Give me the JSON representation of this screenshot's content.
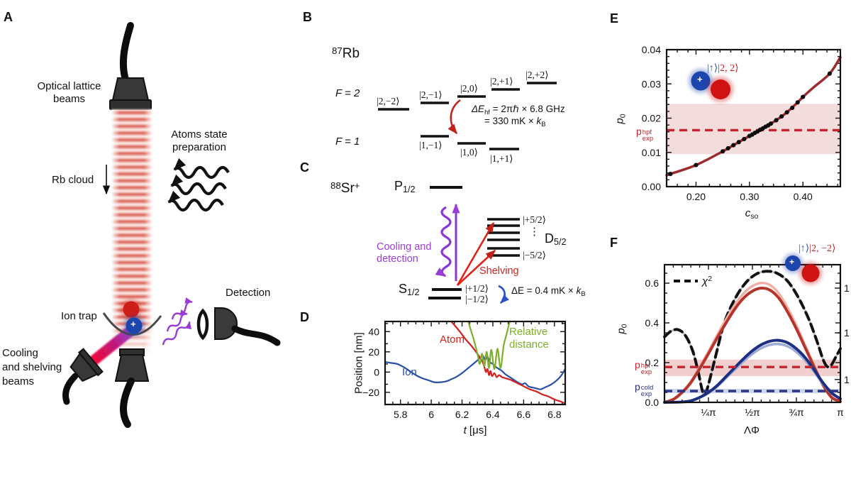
{
  "panels": {
    "A": {
      "label": "A",
      "optical_lattice": [
        "Optical lattice",
        "beams"
      ],
      "atoms_state": [
        "Atoms state",
        "preparation"
      ],
      "rb_cloud": "Rb cloud",
      "ion_trap": "Ion trap",
      "detection": "Detection",
      "cooling": [
        "Cooling",
        "and shelving",
        "beams"
      ],
      "ion_plus": "+"
    },
    "B": {
      "label": "B",
      "isotope_mass": "87",
      "isotope_symbol": "Rb",
      "f2": "F = 2",
      "f1": "F = 1",
      "f2_states": [
        "|2,−2⟩",
        "|2,−1⟩",
        "|2,0⟩",
        "|2,+1⟩",
        "|2,+2⟩"
      ],
      "f1_states": [
        "|1,−1⟩",
        "|1,0⟩",
        "|1,+1⟩"
      ],
      "hf_line1_main": "ΔE",
      "hf_line1_sub": "hf",
      "hf_line1_rest": " = 2πℏ × 6.8 GHz",
      "hf_line2_main": "= 330 mK × ",
      "hf_line2_k": "k",
      "hf_line2_sub": "B"
    },
    "C": {
      "label": "C",
      "ion_mass": "88",
      "ion_symbol": "Sr",
      "ion_charge": "+",
      "P": "P",
      "P_sub": "1/2",
      "S": "S",
      "S_sub": "1/2",
      "D": "D",
      "D_sub": "5/2",
      "d_top": "|+5/2⟩",
      "d_bottom": "|−5/2⟩",
      "dots": "⋮",
      "s_up": "|+1/2⟩",
      "s_down": "|−1/2⟩",
      "cooling": [
        "Cooling and",
        "detection"
      ],
      "shelving": "Shelving",
      "dE_main": "ΔE = 0.4 mK × ",
      "dE_k": "k",
      "dE_sub": "B"
    }
  },
  "chart_data": [
    {
      "panel": "D",
      "type": "line",
      "ylabel": "Position [nm]",
      "xlabel_it": "t",
      "xlabel_rest": " [μs]",
      "xlim": [
        5.7,
        6.87
      ],
      "ylim": [
        -32,
        50
      ],
      "xticks": [
        5.8,
        6.0,
        6.2,
        6.4,
        6.6,
        6.8
      ],
      "xtick_labels": [
        "5.8",
        "6",
        "6.2",
        "6.4",
        "6.6",
        "6.8"
      ],
      "yticks": [
        -20,
        0,
        20,
        40
      ],
      "ytick_labels": [
        "−20",
        "0",
        "20",
        "40"
      ],
      "xminor": 0.05,
      "yminor": 10,
      "series": [
        {
          "name": "Ion",
          "color": "#2a4fa8",
          "width": 2.2,
          "points": [
            [
              5.7,
              10
            ],
            [
              5.74,
              9
            ],
            [
              5.78,
              8
            ],
            [
              5.82,
              5
            ],
            [
              5.86,
              1
            ],
            [
              5.9,
              -3
            ],
            [
              5.94,
              -6
            ],
            [
              5.98,
              -8
            ],
            [
              6.02,
              -10
            ],
            [
              6.06,
              -10
            ],
            [
              6.1,
              -9
            ],
            [
              6.13,
              -7
            ],
            [
              6.16,
              -5
            ],
            [
              6.2,
              -1
            ],
            [
              6.24,
              4
            ],
            [
              6.28,
              9
            ],
            [
              6.31,
              13
            ],
            [
              6.335,
              16
            ],
            [
              6.35,
              12
            ],
            [
              6.365,
              15
            ],
            [
              6.38,
              10
            ],
            [
              6.4,
              8
            ],
            [
              6.42,
              5
            ],
            [
              6.44,
              3
            ],
            [
              6.46,
              1
            ],
            [
              6.48,
              -2
            ],
            [
              6.5,
              -4
            ],
            [
              6.53,
              -7
            ],
            [
              6.56,
              -10
            ],
            [
              6.59,
              -12
            ],
            [
              6.61,
              -11
            ],
            [
              6.63,
              -14
            ],
            [
              6.65,
              -15
            ],
            [
              6.68,
              -16
            ],
            [
              6.71,
              -17
            ],
            [
              6.74,
              -15
            ],
            [
              6.77,
              -13
            ],
            [
              6.8,
              -10
            ],
            [
              6.83,
              -6
            ],
            [
              6.85,
              -2
            ],
            [
              6.87,
              3
            ]
          ]
        },
        {
          "name": "Atom",
          "color": "#d42020",
          "width": 2.2,
          "points": [
            [
              6.13,
              50
            ],
            [
              6.18,
              41
            ],
            [
              6.22,
              33
            ],
            [
              6.26,
              26
            ],
            [
              6.3,
              18
            ],
            [
              6.33,
              11
            ],
            [
              6.345,
              5
            ],
            [
              6.355,
              0
            ],
            [
              6.365,
              3
            ],
            [
              6.375,
              -3
            ],
            [
              6.385,
              1
            ],
            [
              6.395,
              -4
            ],
            [
              6.41,
              -1
            ],
            [
              6.425,
              -5
            ],
            [
              6.44,
              -3
            ],
            [
              6.46,
              -5
            ],
            [
              6.48,
              -6
            ],
            [
              6.52,
              -8
            ],
            [
              6.56,
              -11
            ],
            [
              6.6,
              -14
            ],
            [
              6.64,
              -17
            ],
            [
              6.68,
              -19
            ],
            [
              6.72,
              -22
            ],
            [
              6.76,
              -24
            ],
            [
              6.8,
              -27
            ],
            [
              6.84,
              -29
            ],
            [
              6.87,
              -31
            ]
          ]
        },
        {
          "name": "Relative distance",
          "name_lines": [
            "Relative",
            "distance"
          ],
          "color": "#7fae2a",
          "width": 2.2,
          "points": [
            [
              6.24,
              50
            ],
            [
              6.26,
              40
            ],
            [
              6.28,
              30
            ],
            [
              6.3,
              18
            ],
            [
              6.315,
              8
            ],
            [
              6.33,
              18
            ],
            [
              6.345,
              6
            ],
            [
              6.36,
              20
            ],
            [
              6.375,
              4
            ],
            [
              6.39,
              22
            ],
            [
              6.41,
              3
            ],
            [
              6.43,
              23
            ],
            [
              6.45,
              4
            ],
            [
              6.47,
              26
            ],
            [
              6.49,
              38
            ],
            [
              6.51,
              50
            ]
          ]
        }
      ]
    },
    {
      "panel": "E",
      "type": "line+scatter",
      "ylabel_it": "p",
      "ylabel_sub": "0",
      "xlabel_it": "c",
      "xlabel_sub": "so",
      "xlim": [
        0.145,
        0.47
      ],
      "ylim": [
        0,
        0.04
      ],
      "xticks": [
        0.2,
        0.3,
        0.4
      ],
      "xtick_labels": [
        "0.20",
        "0.30",
        "0.40"
      ],
      "yticks": [
        0.0,
        0.01,
        0.02,
        0.03,
        0.04
      ],
      "ytick_labels": [
        "0.00",
        "0.01",
        "0.02",
        "0.03",
        "0.04"
      ],
      "xminor": 0.02,
      "yminor": 0.002,
      "bands": [
        {
          "y0": 0.0095,
          "y1": 0.0242,
          "color": "#f3dcdc"
        }
      ],
      "series": [
        {
          "name": "model",
          "color": "#9e2a2e",
          "width": 3.5,
          "points": [
            [
              0.145,
              0.0033
            ],
            [
              0.152,
              0.0037
            ],
            [
              0.2,
              0.0063
            ],
            [
              0.25,
              0.0103
            ],
            [
              0.27,
              0.0121
            ],
            [
              0.29,
              0.0139
            ],
            [
              0.31,
              0.0157
            ],
            [
              0.33,
              0.0175
            ],
            [
              0.35,
              0.0194
            ],
            [
              0.37,
              0.0217
            ],
            [
              0.39,
              0.0246
            ],
            [
              0.4,
              0.0262
            ],
            [
              0.42,
              0.029
            ],
            [
              0.45,
              0.033
            ],
            [
              0.47,
              0.0378
            ]
          ]
        }
      ],
      "points": [
        [
          0.152,
          0.0037
        ],
        [
          0.2,
          0.0063
        ],
        [
          0.25,
          0.0103
        ],
        [
          0.26,
          0.0112
        ],
        [
          0.27,
          0.0121
        ],
        [
          0.28,
          0.013
        ],
        [
          0.29,
          0.0139
        ],
        [
          0.3,
          0.0148
        ],
        [
          0.305,
          0.0152
        ],
        [
          0.31,
          0.0157
        ],
        [
          0.315,
          0.0161
        ],
        [
          0.32,
          0.0166
        ],
        [
          0.325,
          0.017
        ],
        [
          0.33,
          0.0175
        ],
        [
          0.335,
          0.0179
        ],
        [
          0.34,
          0.0184
        ],
        [
          0.35,
          0.0194
        ],
        [
          0.36,
          0.0205
        ],
        [
          0.37,
          0.0217
        ],
        [
          0.38,
          0.023
        ],
        [
          0.39,
          0.0246
        ],
        [
          0.4,
          0.0262
        ],
        [
          0.45,
          0.033
        ]
      ],
      "hlines": [
        {
          "y": 0.0165,
          "color": "#c3242e",
          "label_main": "p",
          "label_sup": "hpf",
          "label_sub": "exp"
        }
      ],
      "inset": {
        "up": "|↑⟩",
        "state": "|2, 2⟩",
        "plus": "+"
      }
    },
    {
      "panel": "F",
      "type": "line",
      "ylabel_it": "p",
      "ylabel_sub": "0",
      "xlabel": "ΛΦ",
      "xlim": [
        0,
        1
      ],
      "ylim": [
        0,
        0.693
      ],
      "xticks": [
        0.25,
        0.5,
        0.75,
        1
      ],
      "xtick_labels": [
        "¼π",
        "½π",
        "¾π",
        "π"
      ],
      "yticks": [
        0.0,
        0.2,
        0.4,
        0.6
      ],
      "ytick_labels": [
        "0.0",
        "0.2",
        "0.4",
        "0.6"
      ],
      "xminor": 0.05,
      "yminor": 0.05,
      "right_ticks": {
        "pos": [
          0.575,
          0.35,
          0.115
        ],
        "labels": [
          "1",
          "1",
          "1"
        ]
      },
      "legend": {
        "chi": "χ",
        "sup": "2"
      },
      "bands": [
        {
          "y0": 0.132,
          "y1": 0.215,
          "color": "#f2cfcf"
        },
        {
          "y0": 0.046,
          "y1": 0.068,
          "color": "#cdd4ec"
        }
      ],
      "series": [
        {
          "name": "chi-squared",
          "color": "#111111",
          "width": 4,
          "dash": "11 7",
          "shadow": "#c0c0c0",
          "points": [
            [
              0,
              0.33
            ],
            [
              0.04,
              0.36
            ],
            [
              0.08,
              0.365
            ],
            [
              0.12,
              0.335
            ],
            [
              0.16,
              0.26
            ],
            [
              0.19,
              0.16
            ],
            [
              0.215,
              0.06
            ],
            [
              0.23,
              0.04
            ],
            [
              0.25,
              0.09
            ],
            [
              0.29,
              0.23
            ],
            [
              0.34,
              0.4
            ],
            [
              0.4,
              0.52
            ],
            [
              0.46,
              0.6
            ],
            [
              0.52,
              0.645
            ],
            [
              0.58,
              0.66
            ],
            [
              0.64,
              0.65
            ],
            [
              0.7,
              0.61
            ],
            [
              0.76,
              0.53
            ],
            [
              0.82,
              0.42
            ],
            [
              0.87,
              0.3
            ],
            [
              0.9,
              0.22
            ],
            [
              0.925,
              0.18
            ],
            [
              0.95,
              0.19
            ],
            [
              0.975,
              0.23
            ],
            [
              1,
              0.27
            ]
          ]
        },
        {
          "name": "hot model",
          "color": "#b5352c",
          "width": 4,
          "light": "#f0b0a6",
          "lightScale": 1.045,
          "points": [
            [
              0,
              0
            ],
            [
              0.05,
              0.015
            ],
            [
              0.1,
              0.05
            ],
            [
              0.15,
              0.1
            ],
            [
              0.2,
              0.17
            ],
            [
              0.25,
              0.245
            ],
            [
              0.3,
              0.325
            ],
            [
              0.35,
              0.4
            ],
            [
              0.4,
              0.47
            ],
            [
              0.45,
              0.525
            ],
            [
              0.5,
              0.56
            ],
            [
              0.55,
              0.575
            ],
            [
              0.6,
              0.565
            ],
            [
              0.65,
              0.525
            ],
            [
              0.7,
              0.455
            ],
            [
              0.75,
              0.37
            ],
            [
              0.8,
              0.275
            ],
            [
              0.85,
              0.18
            ],
            [
              0.9,
              0.09
            ],
            [
              0.95,
              0.025
            ],
            [
              1,
              0.005
            ]
          ]
        },
        {
          "name": "cold model",
          "color": "#1d2f80",
          "width": 4,
          "light": "#9fabd6",
          "lightScale": 0.94,
          "points": [
            [
              0,
              0
            ],
            [
              0.1,
              0.002
            ],
            [
              0.15,
              0.008
            ],
            [
              0.2,
              0.025
            ],
            [
              0.25,
              0.05
            ],
            [
              0.3,
              0.085
            ],
            [
              0.35,
              0.13
            ],
            [
              0.4,
              0.175
            ],
            [
              0.45,
              0.22
            ],
            [
              0.5,
              0.26
            ],
            [
              0.55,
              0.29
            ],
            [
              0.6,
              0.308
            ],
            [
              0.65,
              0.312
            ],
            [
              0.7,
              0.3
            ],
            [
              0.75,
              0.27
            ],
            [
              0.8,
              0.225
            ],
            [
              0.85,
              0.165
            ],
            [
              0.9,
              0.1
            ],
            [
              0.95,
              0.048
            ],
            [
              1,
              0.018
            ]
          ]
        }
      ],
      "hlines": [
        {
          "y": 0.178,
          "color": "#c3242e",
          "label_main": "p",
          "label_sup": "hpf",
          "label_sub": "exp"
        },
        {
          "y": 0.057,
          "color": "#283080",
          "label_main": "p",
          "label_sup": "cold",
          "label_sub": "exp"
        }
      ],
      "inset": {
        "up": "|↑⟩",
        "state": "|2, −2⟩",
        "plus": "+"
      }
    }
  ]
}
